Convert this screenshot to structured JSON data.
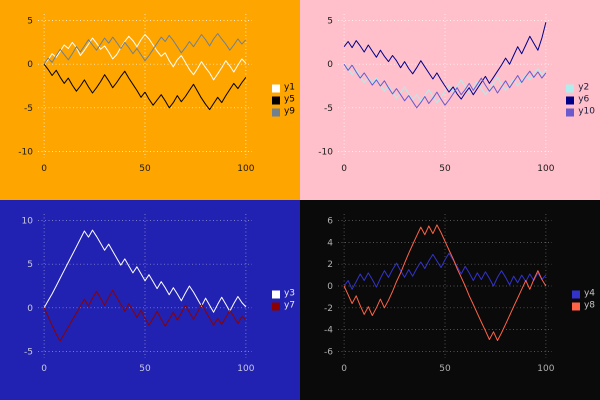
{
  "page": {
    "background": "#000000"
  },
  "chart_data": [
    {
      "type": "line",
      "position": "top-left",
      "title": "",
      "xlabel": "",
      "ylabel": "",
      "background": "#FFA500",
      "xlim": [
        0,
        100
      ],
      "ylim": [
        -10,
        5
      ],
      "xticks": [
        0,
        50,
        100
      ],
      "yticks": [
        5,
        0,
        -5,
        -10
      ],
      "grid": true,
      "grid_style": "dotted",
      "grid_color": "#FFFFFF",
      "tick_color": "#1A1A1A",
      "legend_text_color": "#000000",
      "legend_position": "right",
      "x_start": 0,
      "x_step": 2,
      "series": [
        {
          "name": "y1",
          "color": "#FFFFFF",
          "values": [
            0,
            0.5,
            1.2,
            0.8,
            1.5,
            2.2,
            1.8,
            2.5,
            1.9,
            1.0,
            1.6,
            2.3,
            3.0,
            2.4,
            1.7,
            2.1,
            1.4,
            0.6,
            1.1,
            1.9,
            2.6,
            3.2,
            2.7,
            2.0,
            2.8,
            3.4,
            2.9,
            2.2,
            1.5,
            0.9,
            1.3,
            0.4,
            -0.3,
            0.5,
            1.0,
            0.2,
            -0.6,
            -1.2,
            -0.5,
            0.3,
            -0.4,
            -1.0,
            -1.8,
            -1.1,
            -0.4,
            0.4,
            -0.2,
            -0.9,
            -0.1,
            0.6,
            0.1
          ]
        },
        {
          "name": "y5",
          "color": "#000000",
          "values": [
            0,
            -0.6,
            -1.3,
            -0.7,
            -1.5,
            -2.2,
            -1.6,
            -2.4,
            -3.1,
            -2.5,
            -1.8,
            -2.6,
            -3.3,
            -2.7,
            -2.0,
            -1.2,
            -1.9,
            -2.7,
            -2.1,
            -1.4,
            -0.8,
            -1.6,
            -2.3,
            -3.0,
            -3.8,
            -3.2,
            -4.0,
            -4.7,
            -4.1,
            -3.5,
            -4.2,
            -5.0,
            -4.4,
            -3.6,
            -4.3,
            -3.7,
            -3.0,
            -2.3,
            -3.1,
            -3.9,
            -4.6,
            -5.2,
            -4.5,
            -3.8,
            -4.4,
            -3.6,
            -2.9,
            -2.2,
            -2.8,
            -2.1,
            -1.5
          ]
        },
        {
          "name": "y9",
          "color": "#708090",
          "values": [
            0,
            0.7,
            0.2,
            1.0,
            1.7,
            1.1,
            0.5,
            1.2,
            2.0,
            1.4,
            2.1,
            2.8,
            2.2,
            1.6,
            2.3,
            3.0,
            2.4,
            3.1,
            2.5,
            1.8,
            2.5,
            1.9,
            1.2,
            1.8,
            1.1,
            0.4,
            1.0,
            1.7,
            2.4,
            3.1,
            2.6,
            3.3,
            2.7,
            2.0,
            1.3,
            1.9,
            2.6,
            2.0,
            2.7,
            3.4,
            2.8,
            2.1,
            2.9,
            3.5,
            2.9,
            2.3,
            1.6,
            2.2,
            2.9,
            2.3,
            2.8
          ]
        }
      ]
    },
    {
      "type": "line",
      "position": "top-right",
      "title": "",
      "xlabel": "",
      "ylabel": "",
      "background": "#FFC0CB",
      "xlim": [
        0,
        100
      ],
      "ylim": [
        -10,
        5
      ],
      "xticks": [
        0,
        50,
        100
      ],
      "yticks": [
        5,
        0,
        -5,
        -10
      ],
      "grid": true,
      "grid_style": "dotted",
      "grid_color": "#FFFFFF",
      "tick_color": "#1A1A1A",
      "legend_text_color": "#1A1A3A",
      "legend_position": "right",
      "x_start": 0,
      "x_step": 2,
      "series": [
        {
          "name": "y2",
          "color": "#AFEEEE",
          "values": [
            0,
            -0.5,
            -1.2,
            -0.6,
            -1.4,
            -2.1,
            -1.5,
            -2.2,
            -1.6,
            -2.4,
            -3.1,
            -2.5,
            -3.2,
            -3.9,
            -3.3,
            -2.6,
            -3.4,
            -4.1,
            -3.5,
            -4.2,
            -3.6,
            -2.9,
            -3.7,
            -4.4,
            -3.8,
            -3.1,
            -2.4,
            -3.2,
            -2.5,
            -1.8,
            -2.6,
            -3.3,
            -2.7,
            -2.0,
            -2.8,
            -3.5,
            -2.9,
            -2.2,
            -1.5,
            -2.3,
            -3.0,
            -2.4,
            -1.7,
            -2.5,
            -1.9,
            -1.2,
            -1.8,
            -1.1,
            -0.5,
            -1.2,
            -0.6
          ]
        },
        {
          "name": "y6",
          "color": "#00008B",
          "values": [
            2.0,
            2.6,
            1.9,
            2.7,
            2.1,
            1.4,
            2.2,
            1.5,
            0.8,
            1.6,
            0.9,
            0.3,
            1.0,
            0.4,
            -0.4,
            0.3,
            -0.5,
            -1.1,
            -0.4,
            0.4,
            -0.3,
            -1.0,
            -1.7,
            -1.0,
            -1.8,
            -2.5,
            -3.2,
            -2.6,
            -3.4,
            -4.0,
            -3.3,
            -2.7,
            -3.5,
            -2.8,
            -2.1,
            -1.4,
            -2.2,
            -1.5,
            -0.8,
            -0.1,
            0.7,
            0.0,
            1.0,
            2.0,
            1.2,
            2.2,
            3.2,
            2.4,
            1.6,
            3.0,
            4.8
          ]
        },
        {
          "name": "y10",
          "color": "#6A5ACD",
          "values": [
            0,
            -0.7,
            -0.1,
            -0.9,
            -1.6,
            -1.0,
            -1.7,
            -2.4,
            -1.8,
            -2.5,
            -1.9,
            -2.7,
            -3.4,
            -2.8,
            -3.5,
            -4.2,
            -3.6,
            -4.3,
            -5.0,
            -4.4,
            -3.7,
            -4.5,
            -3.9,
            -3.2,
            -4.0,
            -4.7,
            -4.1,
            -3.4,
            -2.7,
            -3.5,
            -2.9,
            -2.2,
            -3.0,
            -2.3,
            -1.6,
            -2.4,
            -3.1,
            -2.5,
            -3.3,
            -2.6,
            -1.9,
            -2.7,
            -2.0,
            -1.3,
            -2.1,
            -1.4,
            -0.8,
            -1.5,
            -0.9,
            -1.6,
            -1.0
          ]
        }
      ]
    },
    {
      "type": "line",
      "position": "bottom-left",
      "title": "",
      "xlabel": "",
      "ylabel": "",
      "background": "#2222B2",
      "xlim": [
        0,
        100
      ],
      "ylim": [
        -5,
        10
      ],
      "xticks": [
        0,
        50,
        100
      ],
      "yticks": [
        10,
        5,
        0,
        -5
      ],
      "grid": true,
      "grid_style": "dotted",
      "grid_color": "#9A9AD8",
      "tick_color": "#C9C9E2",
      "legend_text_color": "#E8E8F4",
      "legend_position": "right",
      "x_start": 0,
      "x_step": 2,
      "series": [
        {
          "name": "y3",
          "color": "#FFFFFF",
          "values": [
            0,
            0.8,
            1.6,
            2.5,
            3.4,
            4.3,
            5.2,
            6.1,
            7.0,
            7.9,
            8.8,
            8.1,
            8.9,
            8.2,
            7.4,
            6.6,
            7.3,
            6.5,
            5.7,
            4.9,
            5.6,
            4.8,
            4.0,
            4.7,
            3.9,
            3.1,
            3.8,
            3.0,
            2.2,
            3.0,
            2.3,
            1.5,
            2.3,
            1.6,
            0.8,
            1.7,
            2.5,
            1.8,
            1.0,
            0.2,
            1.1,
            0.3,
            -0.5,
            0.4,
            1.2,
            0.4,
            -0.4,
            0.5,
            1.3,
            0.6,
            0.1
          ]
        },
        {
          "name": "y7",
          "color": "#8B0000",
          "values": [
            0,
            -1.0,
            -2.0,
            -3.0,
            -3.8,
            -3.0,
            -2.2,
            -1.4,
            -0.6,
            0.2,
            1.0,
            0.2,
            1.1,
            1.9,
            1.1,
            0.3,
            1.2,
            2.0,
            1.2,
            0.4,
            -0.4,
            0.5,
            -0.3,
            -1.1,
            -0.3,
            -1.2,
            -2.0,
            -1.2,
            -0.4,
            -1.3,
            -2.1,
            -1.3,
            -0.5,
            -1.4,
            -0.6,
            0.3,
            -0.5,
            -1.3,
            -0.5,
            0.4,
            -0.4,
            -1.2,
            -2.0,
            -1.2,
            -1.9,
            -1.1,
            -0.3,
            -1.0,
            -1.8,
            -1.0,
            -1.4
          ]
        }
      ]
    },
    {
      "type": "line",
      "position": "bottom-right",
      "title": "",
      "xlabel": "",
      "ylabel": "",
      "background": "#0A0A0A",
      "xlim": [
        0,
        100
      ],
      "ylim": [
        -6,
        6
      ],
      "xticks": [
        0,
        50,
        100
      ],
      "yticks": [
        6,
        4,
        2,
        0,
        -2,
        -4,
        -6
      ],
      "grid": true,
      "grid_style": "dotted",
      "grid_color": "#6E6E6E",
      "tick_color": "#B0B0B0",
      "legend_text_color": "#C4C4C4",
      "legend_position": "right",
      "x_start": 0,
      "x_step": 2,
      "series": [
        {
          "name": "y4",
          "color": "#3333CC",
          "values": [
            0,
            0.5,
            -0.3,
            0.4,
            1.1,
            0.5,
            1.2,
            0.6,
            -0.1,
            0.7,
            1.4,
            0.8,
            1.5,
            2.1,
            1.4,
            0.8,
            1.5,
            0.9,
            1.6,
            2.2,
            1.6,
            2.3,
            2.9,
            2.3,
            1.7,
            2.4,
            3.0,
            2.4,
            1.8,
            1.1,
            1.8,
            1.2,
            0.5,
            1.2,
            0.6,
            1.3,
            0.7,
            0.0,
            0.8,
            1.4,
            0.8,
            0.1,
            0.9,
            0.3,
            1.0,
            0.4,
            1.1,
            0.5,
            1.2,
            0.6,
            1.0
          ]
        },
        {
          "name": "y8",
          "color": "#FF6347",
          "values": [
            0,
            -0.8,
            -1.6,
            -0.9,
            -1.8,
            -2.6,
            -1.9,
            -2.7,
            -2.0,
            -1.2,
            -2.0,
            -1.3,
            -0.5,
            0.4,
            1.2,
            2.1,
            3.0,
            3.8,
            4.6,
            5.4,
            4.7,
            5.5,
            4.8,
            5.6,
            4.9,
            4.1,
            3.3,
            2.5,
            1.6,
            0.8,
            0.0,
            -0.9,
            -1.7,
            -2.5,
            -3.3,
            -4.1,
            -4.9,
            -4.2,
            -5.0,
            -4.3,
            -3.5,
            -2.7,
            -1.9,
            -1.1,
            -0.3,
            0.5,
            -0.3,
            0.6,
            1.4,
            0.6,
            0.0
          ]
        }
      ]
    }
  ]
}
